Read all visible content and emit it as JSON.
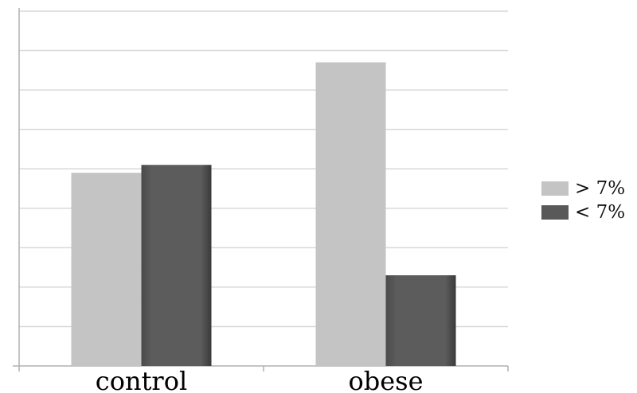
{
  "chart_data": {
    "type": "bar",
    "categories": [
      "control",
      "obese"
    ],
    "series": [
      {
        "name": "> 7%",
        "values": [
          4.9,
          7.7
        ],
        "color": "#c4c4c4"
      },
      {
        "name": "< 7%",
        "values": [
          5.1,
          2.3
        ],
        "color": "#595959"
      }
    ],
    "title": "",
    "xlabel": "",
    "ylabel": "",
    "ylim": [
      0,
      9
    ],
    "grid": true,
    "y_tick_labels_shown": false,
    "legend_position": "right"
  }
}
